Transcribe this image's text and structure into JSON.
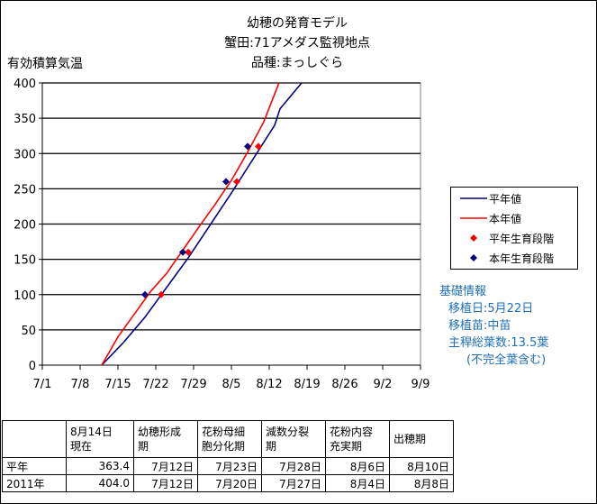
{
  "title": {
    "line1": "幼穂の発育モデル",
    "line2": "蟹田:71アメダス監視地点",
    "line3": "品種:まっしぐら"
  },
  "colors": {
    "normal_line": "#000080",
    "current_line": "#ff0000",
    "normal_point": "#ff0000",
    "current_point": "#000080",
    "info_text": "#1f6fb8"
  },
  "chart_data": {
    "type": "line",
    "title": "幼穂の発育モデル",
    "ylabel": "有効積算気温",
    "xlabel": "",
    "ylim": [
      0,
      400
    ],
    "yticks": [
      0,
      50,
      100,
      150,
      200,
      250,
      300,
      350,
      400
    ],
    "xlim": [
      "7/1",
      "9/9"
    ],
    "xticks": [
      "7/1",
      "7/8",
      "7/15",
      "7/22",
      "7/29",
      "8/5",
      "8/12",
      "8/19",
      "8/26",
      "9/2",
      "9/9"
    ],
    "grid": "horizontal",
    "legend_position": "right",
    "series": [
      {
        "name": "平年値",
        "kind": "line",
        "color": "#000080",
        "points": [
          {
            "x": "7/12",
            "y": 0
          },
          {
            "x": "7/16",
            "y": 32
          },
          {
            "x": "7/20",
            "y": 68
          },
          {
            "x": "7/24",
            "y": 110
          },
          {
            "x": "7/28",
            "y": 152
          },
          {
            "x": "8/1",
            "y": 198
          },
          {
            "x": "8/5",
            "y": 244
          },
          {
            "x": "8/9",
            "y": 292
          },
          {
            "x": "8/13",
            "y": 340
          },
          {
            "x": "8/14",
            "y": 363.4
          },
          {
            "x": "8/18",
            "y": 400
          }
        ]
      },
      {
        "name": "本年値",
        "kind": "line",
        "color": "#ff0000",
        "points": [
          {
            "x": "7/12",
            "y": 0
          },
          {
            "x": "7/15",
            "y": 40
          },
          {
            "x": "7/18",
            "y": 72
          },
          {
            "x": "7/21",
            "y": 104
          },
          {
            "x": "7/24",
            "y": 130
          },
          {
            "x": "7/27",
            "y": 163
          },
          {
            "x": "7/30",
            "y": 196
          },
          {
            "x": "8/2",
            "y": 228
          },
          {
            "x": "8/5",
            "y": 262
          },
          {
            "x": "8/8",
            "y": 302
          },
          {
            "x": "8/11",
            "y": 345
          },
          {
            "x": "8/14",
            "y": 404.0
          }
        ]
      },
      {
        "name": "平年生育段階",
        "kind": "points",
        "color": "#ff0000",
        "points": [
          {
            "x": "7/23",
            "y": 100
          },
          {
            "x": "7/28",
            "y": 160
          },
          {
            "x": "8/6",
            "y": 260
          },
          {
            "x": "8/10",
            "y": 310
          }
        ]
      },
      {
        "name": "本年生育段階",
        "kind": "points",
        "color": "#000080",
        "points": [
          {
            "x": "7/20",
            "y": 100
          },
          {
            "x": "7/27",
            "y": 160
          },
          {
            "x": "8/4",
            "y": 260
          },
          {
            "x": "8/8",
            "y": 310
          }
        ]
      }
    ]
  },
  "info": {
    "heading": "基礎情報",
    "lines": [
      "移植日:5月22日",
      "移植苗:中苗",
      "主稈総葉数:13.5葉",
      "(不完全葉含む)"
    ]
  },
  "table": {
    "headers": [
      "",
      "8月14日\n現在",
      "幼穂形成\n期",
      "花粉母細\n胞分化期",
      "減数分裂\n期",
      "花粉内容\n充実期",
      "出穂期"
    ],
    "rows": [
      [
        "平年",
        "363.4",
        "7月12日",
        "7月23日",
        "7月28日",
        "8月6日",
        "8月10日"
      ],
      [
        "2011年",
        "404.0",
        "7月12日",
        "7月20日",
        "7月27日",
        "8月4日",
        "8月8日"
      ]
    ]
  }
}
